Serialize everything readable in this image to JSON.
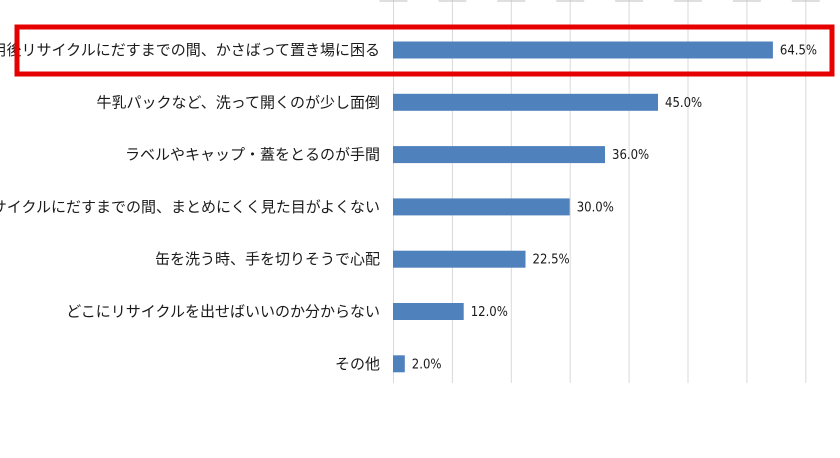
{
  "chart_data": {
    "type": "bar",
    "orientation": "horizontal",
    "categories": [
      "使用後リサイクルにだすまでの間、かさばって置き場に困る",
      "牛乳パックなど、洗って開くのが少し面倒",
      "ラベルやキャップ・蓋をとるのが手間",
      "使用後リサイクルにだすまでの間、まとめにくく見た目がよくない",
      "缶を洗う時、手を切りそうで心配",
      "どこにリサイクルを出せばいいのか分からない",
      "その他"
    ],
    "values": [
      64.5,
      45.0,
      36.0,
      30.0,
      22.5,
      12.0,
      2.0
    ],
    "value_labels": [
      "64.5%",
      "45.0%",
      "36.0%",
      "30.0%",
      "22.5%",
      "12.0%",
      "2.0%"
    ],
    "xlim": [
      0,
      70
    ],
    "grid": true,
    "highlighted_category_index": 0,
    "colors": {
      "bar": "#4f81bd",
      "highlight_box": "#e60000",
      "grid": "#d9d9d9"
    }
  }
}
